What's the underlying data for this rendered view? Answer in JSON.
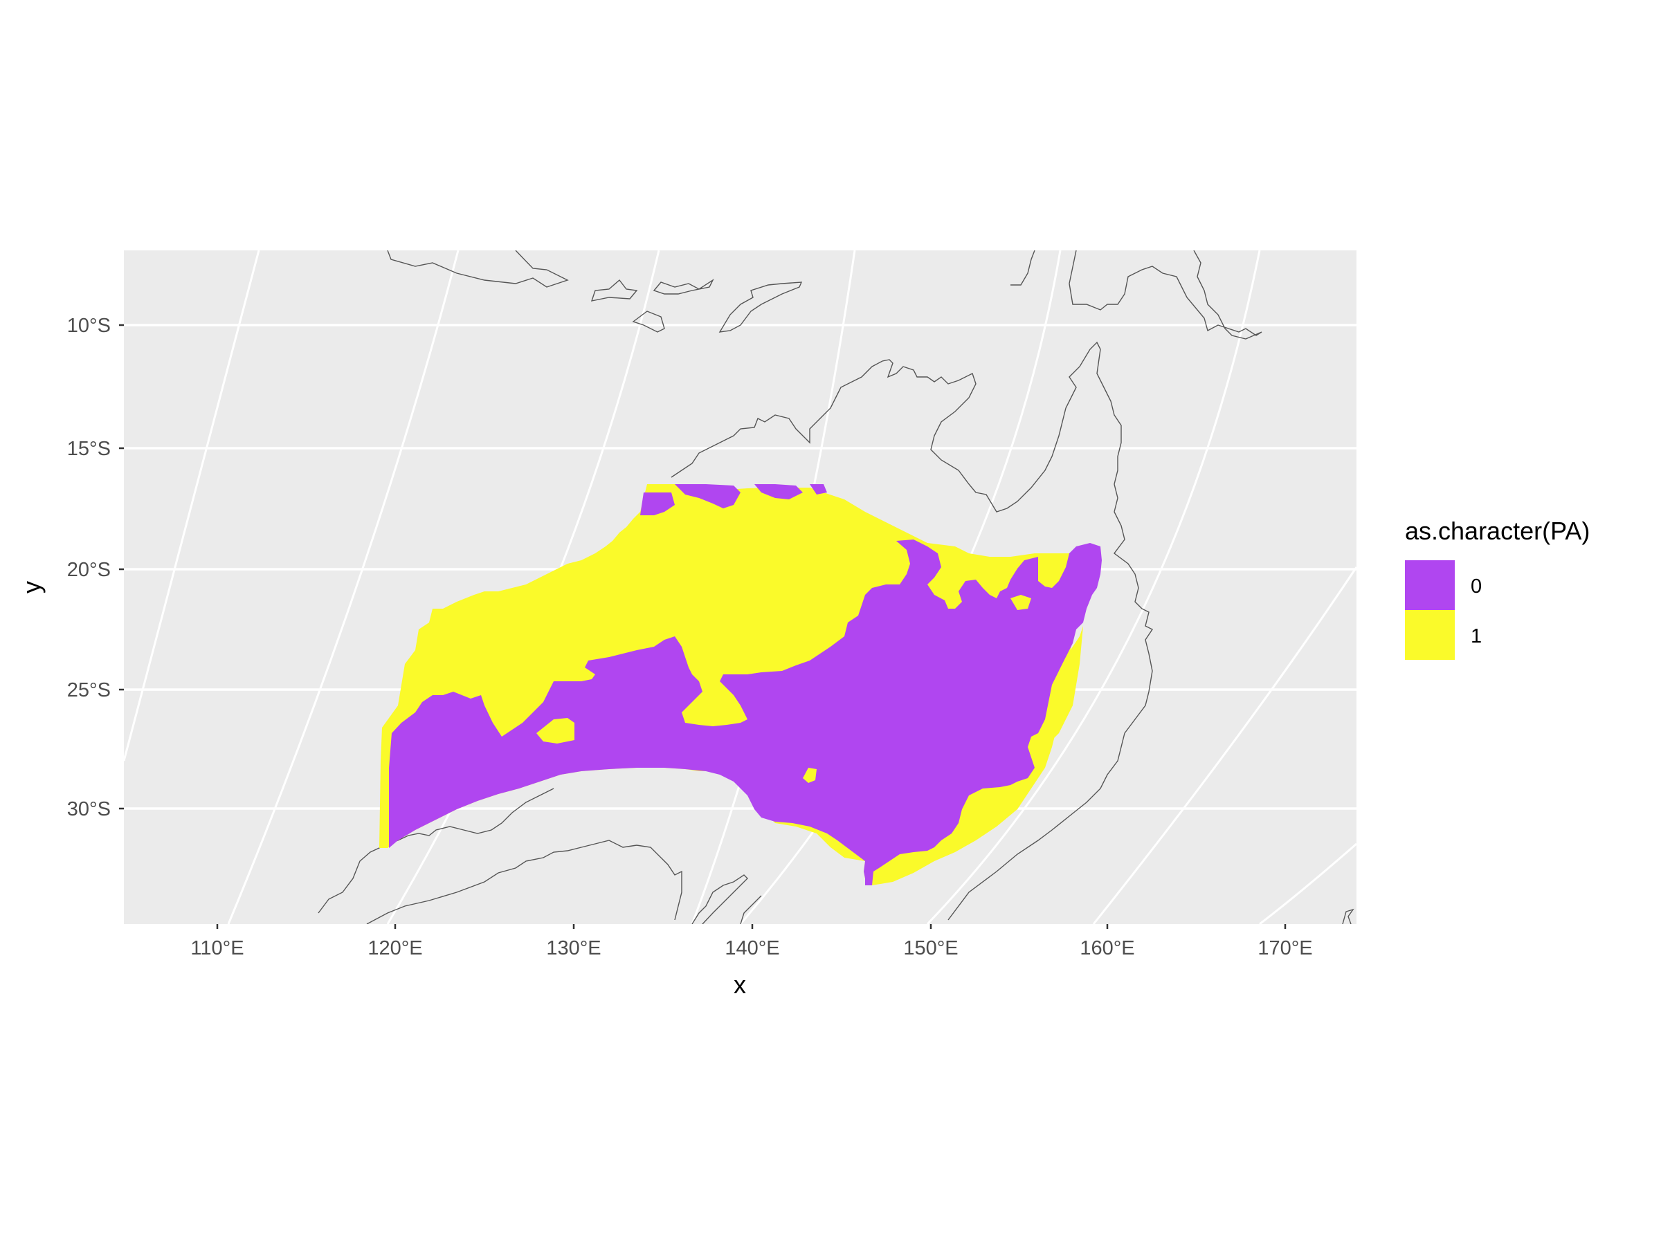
{
  "chart_data": {
    "type": "heatmap",
    "title": "",
    "xlabel": "x",
    "ylabel": "y",
    "x_ticks": [
      "110°E",
      "120°E",
      "130°E",
      "140°E",
      "150°E",
      "160°E",
      "170°E"
    ],
    "y_ticks": [
      "10°S",
      "15°S",
      "20°S",
      "25°S",
      "30°S"
    ],
    "panel_background": "#ebebeb",
    "grid": true,
    "grid_color": "#ffffff",
    "coastline_color": "#4d4d4d",
    "legend": {
      "title": "as.character(PA)",
      "placement": "right",
      "entries": [
        {
          "label": "0",
          "color": "#b046f0"
        },
        {
          "label": "1",
          "color": "#fafa2a"
        }
      ]
    },
    "regions": [
      {
        "label": "1",
        "description": "northern and western band of raster"
      },
      {
        "label": "0",
        "description": "central and southern interior of raster"
      }
    ]
  }
}
